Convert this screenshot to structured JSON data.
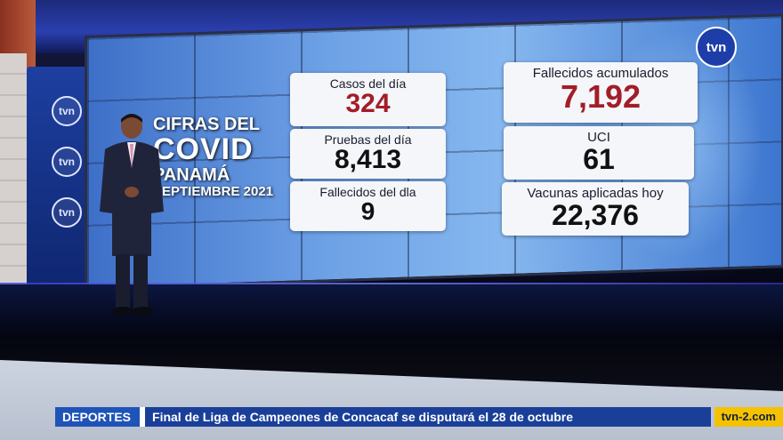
{
  "broadcast": {
    "logo_text": "tvn",
    "side_logos": [
      "tvn",
      "tvn",
      "tvn"
    ]
  },
  "screen_title": {
    "line1": "CIFRAS DEL",
    "line2": "COVID",
    "line3": "PANAMÁ",
    "line4": "SEPTIEMBRE 2021"
  },
  "stats": [
    {
      "label": "Casos del día",
      "value": "324",
      "color": "red"
    },
    {
      "label": "Pruebas del día",
      "value": "8,413",
      "color": "black"
    },
    {
      "label": "Fallecidos del dla",
      "value": "9",
      "color": "black"
    },
    {
      "label": "Fallecidos acumulados",
      "value": "7,192",
      "color": "red"
    },
    {
      "label": "UCI",
      "value": "61",
      "color": "black"
    },
    {
      "label": "Vacunas aplicadas hoy",
      "value": "22,376",
      "color": "black"
    }
  ],
  "ticker": {
    "section": "DEPORTES",
    "headline": "Final de Liga de Campeones de Concacaf se disputará el 28 de octubre",
    "website": "tvn-2.com"
  },
  "colors": {
    "accent_red": "#a31d28",
    "ticker_blue": "#1a3f99",
    "ticker_yellow": "#f4c200"
  }
}
